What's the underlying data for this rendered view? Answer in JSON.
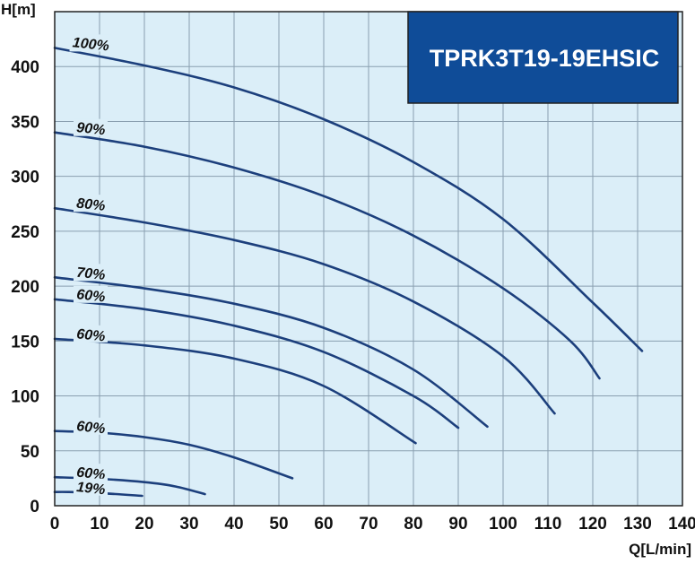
{
  "chart_data": {
    "type": "line",
    "title": "TPRK3T19-19EHSIC",
    "xlabel": "Q[L/min]",
    "ylabel": "H[m]",
    "xlim": [
      0,
      140
    ],
    "ylim": [
      0,
      450
    ],
    "xticks": [
      0,
      10,
      20,
      30,
      40,
      50,
      60,
      70,
      80,
      90,
      100,
      110,
      120,
      130,
      140
    ],
    "yticks": [
      0,
      50,
      100,
      150,
      200,
      250,
      300,
      350,
      400
    ],
    "grid": true,
    "legend": "none",
    "colors": {
      "plot_background": "#dbeef8",
      "grid": "#8a9fb0",
      "curve": "#1c3f7c",
      "title_box": "#0f4c98",
      "title_border": "#222222"
    },
    "series": [
      {
        "name": "100%",
        "x": [
          0,
          20,
          40,
          60,
          80,
          100,
          120,
          131
        ],
        "y": [
          417,
          401,
          381,
          352,
          313,
          261,
          185,
          141
        ]
      },
      {
        "name": "90%",
        "x": [
          0,
          20,
          40,
          60,
          80,
          100,
          115,
          121.5
        ],
        "y": [
          340,
          327,
          308,
          282,
          246,
          198,
          150,
          116
        ]
      },
      {
        "name": "80%",
        "x": [
          0,
          20,
          40,
          60,
          80,
          100,
          111.5
        ],
        "y": [
          271,
          258,
          242,
          220,
          186,
          136,
          84
        ]
      },
      {
        "name": "70%",
        "x": [
          0,
          20,
          40,
          60,
          80,
          96.5
        ],
        "y": [
          208,
          198,
          184,
          162,
          124,
          72
        ]
      },
      {
        "name": "60%",
        "x": [
          0,
          20,
          40,
          60,
          80,
          90
        ],
        "y": [
          188,
          179,
          164,
          140,
          100,
          71
        ]
      },
      {
        "name": "60%",
        "x": [
          0,
          20,
          40,
          60,
          80.5
        ],
        "y": [
          152,
          146,
          134,
          109,
          57
        ]
      },
      {
        "name": "60%",
        "x": [
          0,
          10,
          20,
          30,
          40,
          53
        ],
        "y": [
          68,
          66.5,
          62.5,
          55.5,
          44,
          25
        ]
      },
      {
        "name": "60%",
        "x": [
          0,
          10,
          20,
          27,
          33.5
        ],
        "y": [
          26,
          24.5,
          21.5,
          17.5,
          10.5
        ]
      },
      {
        "name": "19%",
        "x": [
          0,
          3,
          10,
          19.5
        ],
        "y": [
          12.5,
          12.5,
          11.5,
          9
        ]
      }
    ]
  }
}
